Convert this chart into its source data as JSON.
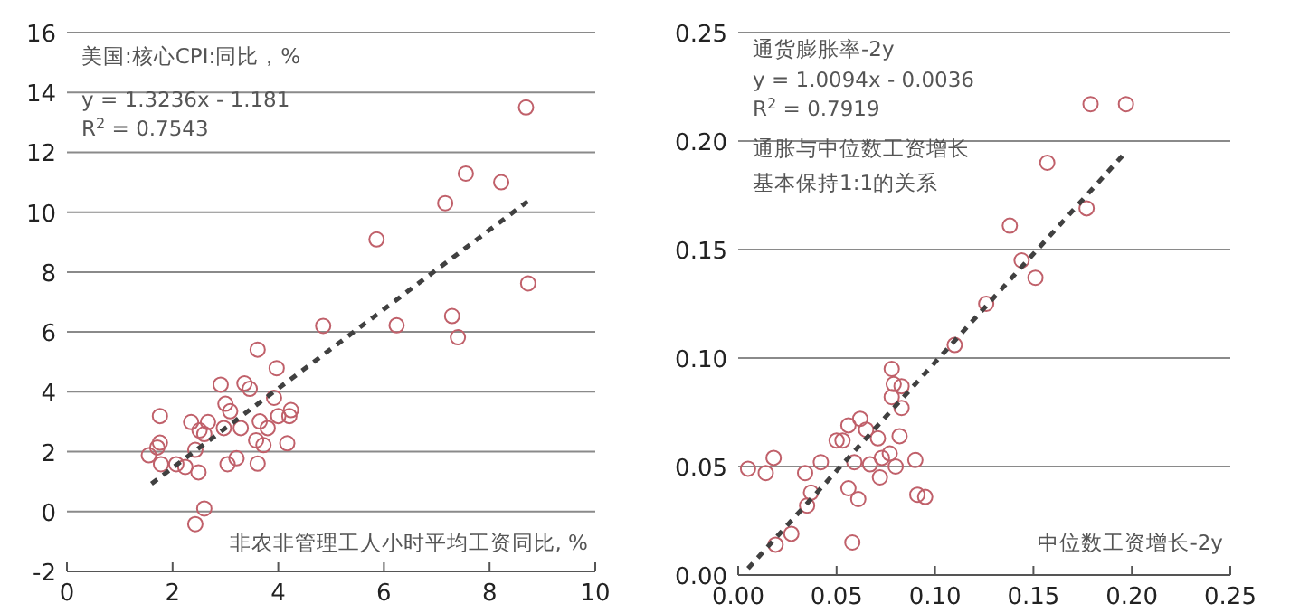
{
  "chart_data": [
    {
      "type": "scatter",
      "ylabel": "美国:核心CPI:同比，%",
      "xlabel": "非农非管理工人小时平均工资同比, %",
      "annotations": [
        "y = 1.3236x - 1.181",
        "R$^{2}$ = 0.7543"
      ],
      "xlim": [
        0,
        10
      ],
      "xticks": [
        0,
        2,
        4,
        6,
        8,
        10
      ],
      "ylim": [
        -2,
        16
      ],
      "yticks": [
        -2,
        0,
        2,
        4,
        6,
        8,
        10,
        12,
        14,
        16
      ],
      "grid": "y",
      "marker": "circle",
      "series": [
        {
          "color": "#c0606a",
          "x": [
            1.55,
            1.76,
            1.76,
            1.71,
            1.78,
            2.07,
            2.24,
            2.35,
            2.43,
            2.51,
            2.6,
            2.67,
            2.49,
            2.43,
            2.6,
            2.91,
            2.97,
            3.0,
            3.09,
            3.04,
            3.21,
            3.29,
            3.36,
            3.46,
            3.61,
            3.65,
            3.58,
            3.72,
            3.8,
            3.61,
            3.92,
            3.97,
            4.0,
            4.24,
            4.21,
            4.17,
            4.85,
            6.24,
            7.29,
            7.4,
            5.86,
            7.16,
            7.55,
            8.22,
            8.69,
            8.73
          ],
          "values": [
            1.88,
            3.19,
            2.3,
            2.14,
            1.58,
            1.58,
            1.49,
            2.99,
            2.06,
            2.71,
            2.59,
            2.99,
            1.31,
            -0.42,
            0.1,
            4.24,
            2.79,
            3.6,
            3.35,
            1.58,
            1.78,
            2.79,
            4.28,
            4.1,
            5.41,
            3.01,
            2.38,
            2.22,
            2.79,
            1.6,
            3.8,
            4.79,
            3.19,
            3.39,
            3.19,
            2.28,
            6.2,
            6.22,
            6.53,
            5.82,
            9.09,
            10.3,
            11.29,
            11.0,
            13.5,
            7.62
          ]
        },
        {
          "type": "line",
          "color": "#404040",
          "line_style": "dashed",
          "marker": "none",
          "x": [
            1.6,
            8.75
          ],
          "values": [
            0.93,
            10.4
          ]
        }
      ]
    },
    {
      "type": "scatter",
      "ylabel": "通货膨胀率-2y",
      "xlabel": "中位数工资增长-2y",
      "annotations": [
        "y = 1.0094x - 0.0036",
        "R$^{2}$ = 0.7919",
        "通胀与中位数工资增长",
        "基本保持1:1的关系"
      ],
      "xlim": [
        0,
        0.25
      ],
      "xticks": [
        {
          "value": 0,
          "label": "0.00"
        },
        {
          "value": 0.05,
          "label": "0.05"
        },
        {
          "value": 0.1,
          "label": "0.10"
        },
        {
          "value": 0.15,
          "label": "0.15"
        },
        {
          "value": 0.2,
          "label": "0.20"
        },
        {
          "value": 0.25,
          "label": "0.25"
        }
      ],
      "ylim": [
        0,
        0.25
      ],
      "yticks": [
        {
          "value": 0,
          "label": "0.00"
        },
        {
          "value": 0.05,
          "label": "0.05"
        },
        {
          "value": 0.1,
          "label": "0.10"
        },
        {
          "value": 0.15,
          "label": "0.15"
        },
        {
          "value": 0.2,
          "label": "0.20"
        },
        {
          "value": 0.25,
          "label": "0.25"
        }
      ],
      "grid": "y",
      "marker": "circle",
      "series": [
        {
          "color": "#c0606a",
          "x": [
            0.005,
            0.014,
            0.018,
            0.019,
            0.027,
            0.034,
            0.037,
            0.035,
            0.042,
            0.05,
            0.053,
            0.056,
            0.056,
            0.058,
            0.059,
            0.061,
            0.062,
            0.065,
            0.067,
            0.071,
            0.072,
            0.073,
            0.077,
            0.078,
            0.078,
            0.079,
            0.083,
            0.083,
            0.08,
            0.082,
            0.09,
            0.091,
            0.095,
            0.11,
            0.126,
            0.138,
            0.144,
            0.151,
            0.157,
            0.177,
            0.179,
            0.197
          ],
          "values": [
            0.049,
            0.047,
            0.054,
            0.014,
            0.019,
            0.047,
            0.038,
            0.032,
            0.052,
            0.062,
            0.062,
            0.069,
            0.04,
            0.015,
            0.052,
            0.035,
            0.072,
            0.067,
            0.051,
            0.063,
            0.045,
            0.054,
            0.056,
            0.095,
            0.082,
            0.088,
            0.087,
            0.077,
            0.05,
            0.064,
            0.053,
            0.037,
            0.036,
            0.106,
            0.125,
            0.161,
            0.145,
            0.137,
            0.19,
            0.169,
            0.217,
            0.217
          ]
        },
        {
          "type": "line",
          "color": "#404040",
          "line_style": "dashed",
          "marker": "none",
          "x": [
            0.005,
            0.197
          ],
          "values": [
            0.003,
            0.195
          ]
        }
      ]
    }
  ]
}
